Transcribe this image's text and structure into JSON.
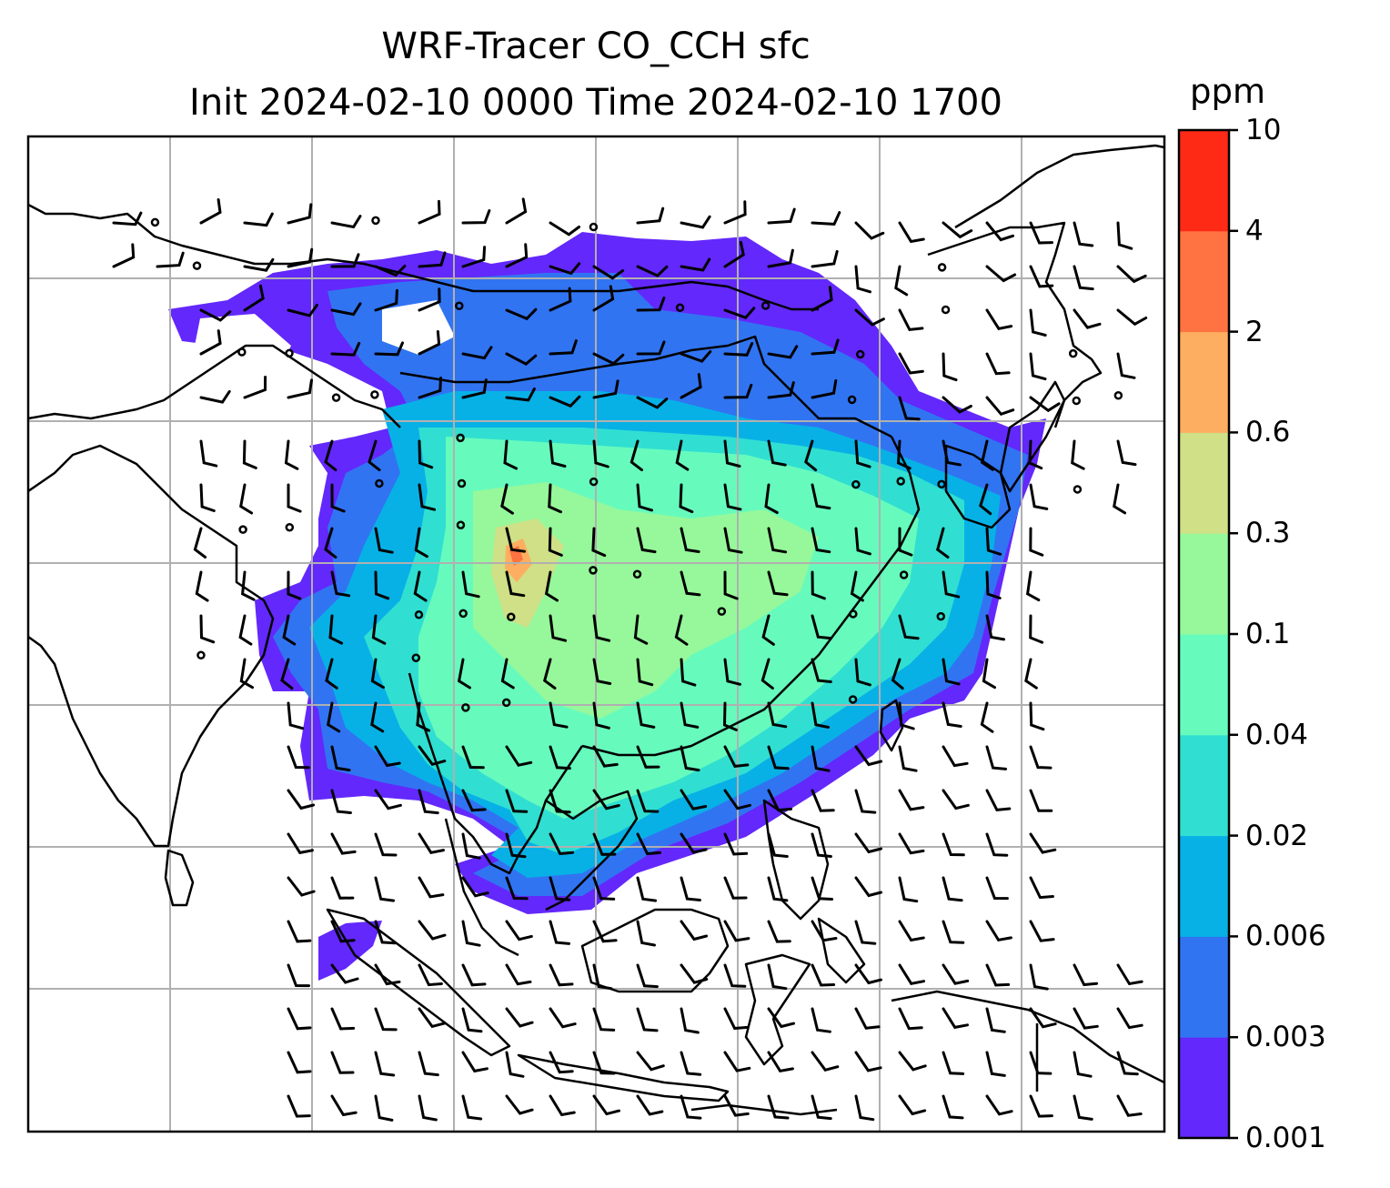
{
  "title": {
    "line1": "WRF-Tracer CO_CCH sfc",
    "line2": "Init 2024-02-10 0000 Time 2024-02-10 1700"
  },
  "colorbar": {
    "unit": "ppm",
    "tick_labels": [
      "0.001",
      "0.003",
      "0.006",
      "0.02",
      "0.04",
      "0.1",
      "0.3",
      "0.6",
      "2",
      "4",
      "10"
    ],
    "colors": [
      "#6328fb",
      "#3174f2",
      "#07b1e6",
      "#30dfd1",
      "#66fbbd",
      "#96f89a",
      "#cfe087",
      "#fdae60",
      "#ff7241",
      "#fe2a16"
    ]
  },
  "map": {
    "field": "CO_CCH surface tracer concentration",
    "overlay": "wind barbs",
    "graticule": true,
    "region": "South / East / Southeast Asia"
  }
}
